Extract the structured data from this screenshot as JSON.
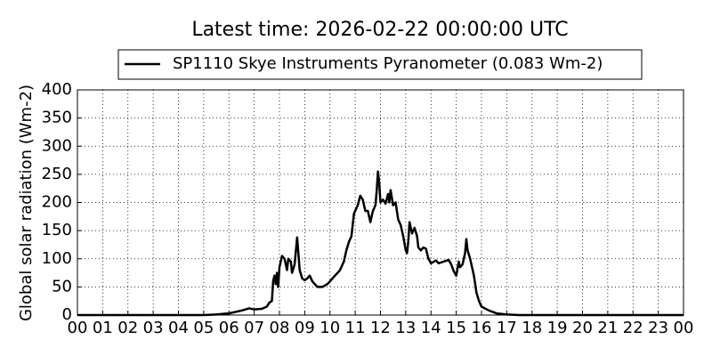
{
  "chart_data": {
    "type": "line",
    "title": "Latest time: 2026-02-22 00:00:00 UTC",
    "y_label": "Global solar radiation (Wm-2)",
    "x": [
      0,
      1,
      2,
      3,
      4,
      5,
      5.5,
      6,
      6.5,
      6.8,
      7,
      7.3,
      7.5,
      7.6,
      7.7,
      7.75,
      7.8,
      7.85,
      7.9,
      7.95,
      8.0,
      8.1,
      8.2,
      8.3,
      8.35,
      8.45,
      8.5,
      8.6,
      8.7,
      8.8,
      8.9,
      9.0,
      9.1,
      9.2,
      9.3,
      9.5,
      9.7,
      9.9,
      10.0,
      10.2,
      10.4,
      10.55,
      10.65,
      10.75,
      10.85,
      10.95,
      11.1,
      11.2,
      11.3,
      11.4,
      11.5,
      11.6,
      11.7,
      11.8,
      11.85,
      11.9,
      11.95,
      12.0,
      12.1,
      12.2,
      12.3,
      12.35,
      12.4,
      12.5,
      12.6,
      12.7,
      12.8,
      12.9,
      13.0,
      13.05,
      13.1,
      13.15,
      13.25,
      13.35,
      13.45,
      13.5,
      13.6,
      13.7,
      13.8,
      13.9,
      14.0,
      14.2,
      14.3,
      14.5,
      14.7,
      14.8,
      14.9,
      15.0,
      15.1,
      15.15,
      15.25,
      15.35,
      15.4,
      15.45,
      15.55,
      15.7,
      15.8,
      15.9,
      16.0,
      16.3,
      16.6,
      17,
      17.5,
      18,
      19,
      20,
      21,
      22,
      23,
      24
    ],
    "series": [
      {
        "name": "SP1110 Skye Instruments Pyranometer (0.083 Wm-2)",
        "color": "#000000",
        "values": [
          0,
          0,
          0,
          0,
          0,
          0,
          1,
          3,
          8,
          12,
          10,
          11,
          15,
          22,
          25,
          60,
          70,
          55,
          75,
          50,
          85,
          105,
          100,
          80,
          100,
          95,
          75,
          90,
          138,
          80,
          65,
          62,
          65,
          70,
          60,
          50,
          50,
          55,
          60,
          70,
          80,
          95,
          115,
          130,
          140,
          180,
          195,
          212,
          205,
          185,
          185,
          165,
          185,
          195,
          220,
          255,
          235,
          200,
          205,
          198,
          215,
          200,
          222,
          195,
          200,
          170,
          160,
          140,
          115,
          110,
          130,
          165,
          145,
          155,
          140,
          120,
          115,
          120,
          118,
          100,
          92,
          97,
          92,
          95,
          98,
          90,
          78,
          70,
          95,
          85,
          90,
          110,
          135,
          115,
          100,
          70,
          40,
          25,
          15,
          8,
          3,
          1,
          0,
          0,
          0,
          0,
          0,
          0,
          0,
          0
        ]
      }
    ],
    "xlim": [
      0,
      24
    ],
    "xticks": [
      {
        "value": 0,
        "label": "00"
      },
      {
        "value": 1,
        "label": "01"
      },
      {
        "value": 2,
        "label": "02"
      },
      {
        "value": 3,
        "label": "03"
      },
      {
        "value": 4,
        "label": "04"
      },
      {
        "value": 5,
        "label": "05"
      },
      {
        "value": 6,
        "label": "06"
      },
      {
        "value": 7,
        "label": "07"
      },
      {
        "value": 8,
        "label": "08"
      },
      {
        "value": 9,
        "label": "09"
      },
      {
        "value": 10,
        "label": "10"
      },
      {
        "value": 11,
        "label": "11"
      },
      {
        "value": 12,
        "label": "12"
      },
      {
        "value": 13,
        "label": "13"
      },
      {
        "value": 14,
        "label": "14"
      },
      {
        "value": 15,
        "label": "15"
      },
      {
        "value": 16,
        "label": "16"
      },
      {
        "value": 17,
        "label": "17"
      },
      {
        "value": 18,
        "label": "18"
      },
      {
        "value": 19,
        "label": "19"
      },
      {
        "value": 20,
        "label": "20"
      },
      {
        "value": 21,
        "label": "21"
      },
      {
        "value": 22,
        "label": "22"
      },
      {
        "value": 23,
        "label": "23"
      },
      {
        "value": 24,
        "label": "00"
      }
    ],
    "ylim": [
      0,
      400
    ],
    "yticks": [
      0,
      50,
      100,
      150,
      200,
      250,
      300,
      350,
      400
    ],
    "grid": true
  }
}
